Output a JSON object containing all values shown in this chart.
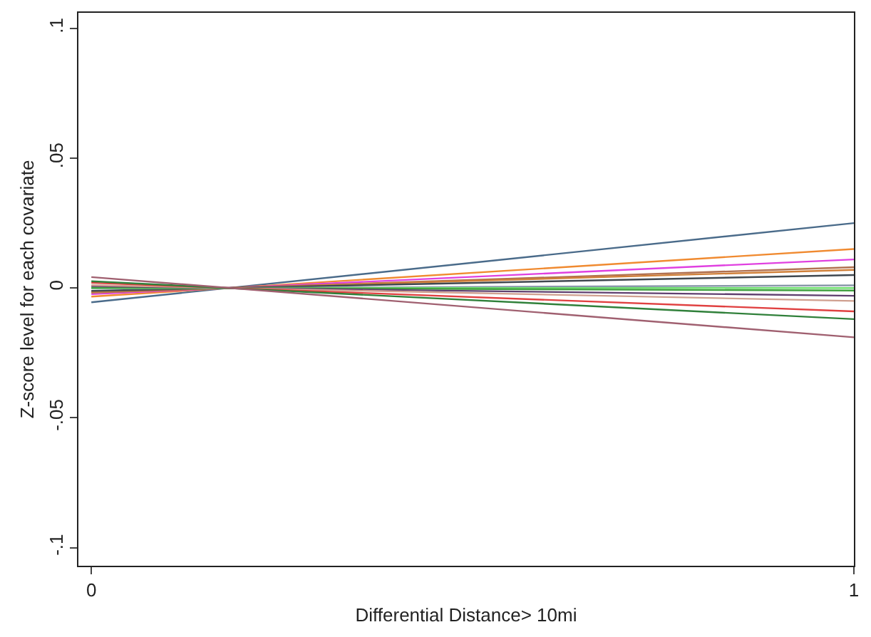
{
  "chart_data": {
    "type": "line",
    "xlabel": "Differential Distance> 10mi",
    "ylabel": "Z-score level for each covariate",
    "x": [
      0,
      1
    ],
    "xlim": [
      -0.017,
      1.0
    ],
    "xticks": [
      0,
      1
    ],
    "ylim": [
      -0.107,
      0.106
    ],
    "yticks": [
      {
        "value": 0.1,
        "label": ".1"
      },
      {
        "value": 0.05,
        "label": ".05"
      },
      0,
      {
        "value": -0.05,
        "label": "-.05"
      },
      {
        "value": -0.1,
        "label": "-.1"
      }
    ],
    "marker": "none",
    "line_style": "solid",
    "series": [
      {
        "color": "#4a6b8a",
        "values": [
          -0.0055,
          0.025
        ]
      },
      {
        "color": "#f08a30",
        "values": [
          -0.0033,
          0.015
        ]
      },
      {
        "color": "#e040e0",
        "values": [
          -0.0024,
          0.011
        ]
      },
      {
        "color": "#b07050",
        "values": [
          -0.0018,
          0.008
        ]
      },
      {
        "color": "#d0803a",
        "values": [
          -0.0015,
          0.007
        ]
      },
      {
        "color": "#404850",
        "values": [
          -0.0011,
          0.005
        ]
      },
      {
        "color": "#8898a8",
        "values": [
          -0.0002,
          0.001
        ]
      },
      {
        "color": "#70e070",
        "values": [
          0.0,
          0.0
        ]
      },
      {
        "color": "#40a040",
        "values": [
          0.0002,
          -0.001
        ]
      },
      {
        "color": "#604070",
        "values": [
          0.0007,
          -0.003
        ]
      },
      {
        "color": "#d0a090",
        "values": [
          0.0011,
          -0.005
        ]
      },
      {
        "color": "#e04040",
        "values": [
          0.002,
          -0.009
        ]
      },
      {
        "color": "#30803a",
        "values": [
          0.0026,
          -0.012
        ]
      },
      {
        "color": "#a06070",
        "values": [
          0.0042,
          -0.019
        ]
      }
    ]
  }
}
